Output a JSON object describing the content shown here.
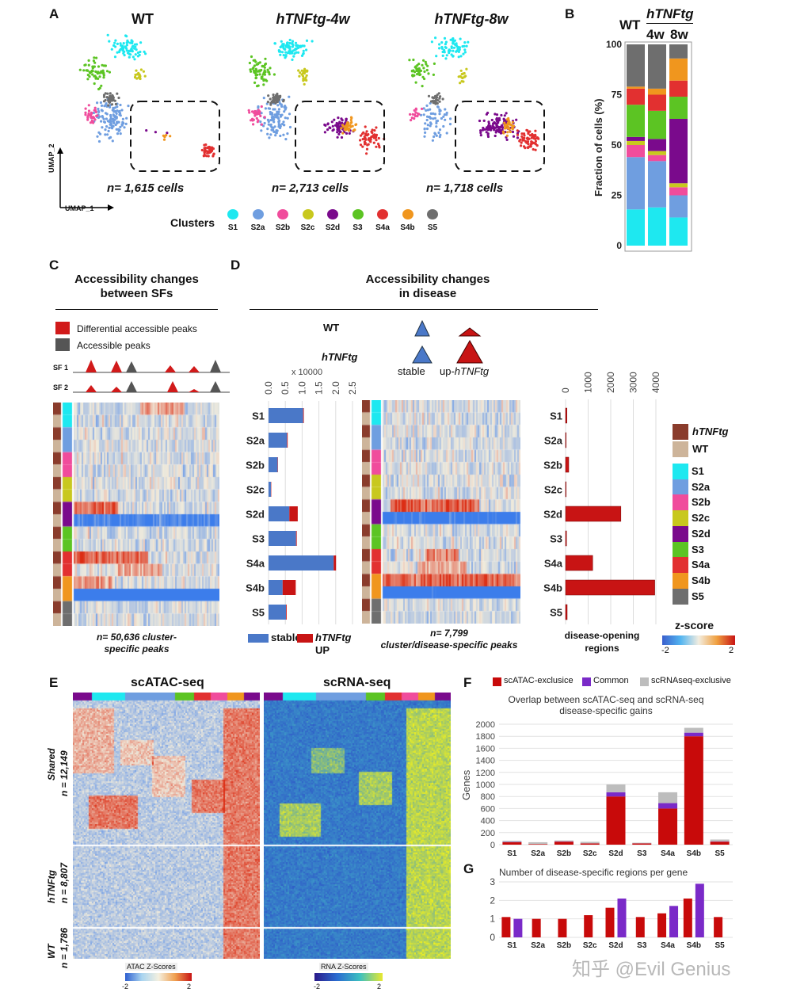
{
  "panels": {
    "A": "A",
    "B": "B",
    "C": "C",
    "D": "D",
    "E": "E",
    "F": "F",
    "G": "G"
  },
  "colors": {
    "S1": "#1ee8f0",
    "S2a": "#6f9ee0",
    "S2b": "#f04c9c",
    "S2c": "#c8c81e",
    "S2d": "#7a0a8c",
    "S3": "#5cc423",
    "S4a": "#e23030",
    "S4b": "#f0961e",
    "S5": "#6e6e6e",
    "hTNFtg": "#8a3c2c",
    "WT": "#cdb49a",
    "stable": "#4a78c8",
    "up": "#c81414",
    "atac_excl": "#c80a0a",
    "common": "#7a2ac8",
    "rna_excl": "#bdbdbd"
  },
  "panel_a": {
    "titles": [
      "WT",
      "hTNFtg-4w",
      "hTNFtg-8w"
    ],
    "counts": [
      "n= 1,615 cells",
      "n= 2,713 cells",
      "n= 1,718 cells"
    ],
    "axis_y": "UMAP_2",
    "axis_x": "UMAP_1",
    "clusters_label": "Clusters",
    "clusters": [
      "S1",
      "S2a",
      "S2b",
      "S2c",
      "S2d",
      "S3",
      "S4a",
      "S4b",
      "S5"
    ]
  },
  "panel_c": {
    "title_line1": "Accessibility changes",
    "title_line2": "between SFs",
    "legend_diff": "Differential accessible peaks",
    "legend_acc": "Accessible peaks",
    "sf1": "SF 1",
    "sf2": "SF 2",
    "caption_line1": "n=  50,636 cluster-",
    "caption_line2": "specific peaks"
  },
  "panel_d": {
    "title_line1": "Accessibility changes",
    "title_line2": "in disease",
    "wt": "WT",
    "htnf": "hTNFtg",
    "stable": "stable",
    "up_prefix": "up-",
    "up_italic": "hTNFtg",
    "legend_stable": "stable",
    "legend_up_italic": "hTNFtg",
    "legend_up_suffix": "UP",
    "heat_caption_line1": "n=  7,799",
    "heat_caption_line2": "cluster/disease-specific peaks",
    "regions_caption_line1": "disease-opening",
    "regions_caption_line2": "regions",
    "key_htnf": "hTNFtg",
    "key_wt": "WT",
    "zscore_title": "z-score",
    "zscore_min": "-2",
    "zscore_max": "2"
  },
  "panel_e": {
    "title_atac": "scATAC-seq",
    "title_rna": "scRNA-seq",
    "shared_label": "Shared",
    "shared_n": "n = 12,149",
    "htnf_label": "hTNFtg",
    "htnf_n": "n = 8,807",
    "wt_label": "WT",
    "wt_n": "n = 1,786",
    "atac_scale": "ATAC Z-Scores",
    "rna_scale": "RNA Z-Scores",
    "scale_min": "-2",
    "scale_max": "2"
  },
  "panel_f": {
    "legend_atac": "scATAC-exclusice",
    "legend_common": "Common",
    "legend_rna": "scRNAseq-exclusive",
    "title_line1": "Overlap between scATAC-seq and scRNA-seq",
    "title_line2": "disease-specific gains"
  },
  "panel_g": {
    "title": "Number of disease-specific regions per gene"
  },
  "watermark": "知乎 @Evil Genius",
  "chart_data": [
    {
      "id": "B",
      "type": "bar",
      "stacked": true,
      "categories": [
        "WT",
        "4w",
        "8w"
      ],
      "category_group": "hTNFtg",
      "ylabel": "Fraction of cells (%)",
      "ylim": [
        0,
        100
      ],
      "yticks": [
        0,
        25,
        50,
        75,
        100
      ],
      "series": [
        {
          "name": "S1",
          "values": [
            18,
            19,
            14
          ]
        },
        {
          "name": "S2a",
          "values": [
            26,
            23,
            11
          ]
        },
        {
          "name": "S2b",
          "values": [
            6,
            3,
            4
          ]
        },
        {
          "name": "S2c",
          "values": [
            2,
            2,
            2
          ]
        },
        {
          "name": "S2d",
          "values": [
            2,
            6,
            32
          ]
        },
        {
          "name": "S3",
          "values": [
            16,
            14,
            11
          ]
        },
        {
          "name": "S4a",
          "values": [
            8,
            8,
            8
          ]
        },
        {
          "name": "S4b",
          "values": [
            1,
            3,
            11
          ]
        },
        {
          "name": "S5",
          "values": [
            21,
            22,
            7
          ]
        }
      ]
    },
    {
      "id": "D-bars",
      "type": "bar",
      "orientation": "horizontal",
      "stacked": true,
      "categories": [
        "S1",
        "S2a",
        "S2b",
        "S2c",
        "S2d",
        "S3",
        "S4a",
        "S4b",
        "S5"
      ],
      "xlabel": "x 10000",
      "xlim": [
        0,
        2.5
      ],
      "xticks": [
        "0.0",
        "0.5",
        "1.0",
        "1.5",
        "2.0",
        "2.5"
      ],
      "series": [
        {
          "name": "stable",
          "values": [
            1.03,
            0.55,
            0.27,
            0.07,
            0.62,
            0.82,
            1.94,
            0.42,
            0.52
          ]
        },
        {
          "name": "hTNFtg UP",
          "values": [
            0.02,
            0.02,
            0.01,
            0.01,
            0.25,
            0.02,
            0.07,
            0.39,
            0.02
          ]
        }
      ]
    },
    {
      "id": "D-regions",
      "type": "bar",
      "orientation": "horizontal",
      "categories": [
        "S1",
        "S2a",
        "S2b",
        "S2c",
        "S2d",
        "S3",
        "S4a",
        "S4b",
        "S5"
      ],
      "xlim": [
        0,
        4000
      ],
      "xticks": [
        "0",
        "1000",
        "2000",
        "3000",
        "4000"
      ],
      "values": [
        60,
        25,
        140,
        25,
        2450,
        40,
        1200,
        3950,
        70
      ]
    },
    {
      "id": "F",
      "type": "bar",
      "stacked": true,
      "categories": [
        "S1",
        "S2a",
        "S2b",
        "S2c",
        "S2d",
        "S3",
        "S4a",
        "S4b",
        "S5"
      ],
      "ylabel": "Genes",
      "ylim": [
        0,
        2000
      ],
      "yticks": [
        0,
        200,
        400,
        600,
        800,
        1000,
        1200,
        1400,
        1600,
        1800,
        2000
      ],
      "series": [
        {
          "name": "scATAC-exclusice",
          "values": [
            40,
            10,
            50,
            20,
            800,
            20,
            600,
            1800,
            50
          ]
        },
        {
          "name": "Common",
          "values": [
            5,
            0,
            5,
            2,
            70,
            2,
            90,
            60,
            5
          ]
        },
        {
          "name": "scRNAseq-exclusive",
          "values": [
            20,
            30,
            15,
            25,
            130,
            10,
            180,
            80,
            30
          ]
        }
      ]
    },
    {
      "id": "G",
      "type": "bar",
      "categories": [
        "S1",
        "S2a",
        "S2b",
        "S2c",
        "S2d",
        "S3",
        "S4a",
        "S4b",
        "S5"
      ],
      "ylim": [
        0,
        3
      ],
      "yticks": [
        0,
        1,
        2,
        3
      ],
      "series": [
        {
          "name": "scATAC",
          "values": [
            1.1,
            1.0,
            1.0,
            1.2,
            1.6,
            1.1,
            1.3,
            2.1,
            1.1
          ]
        },
        {
          "name": "scRNA",
          "values": [
            1.0,
            null,
            null,
            null,
            2.1,
            null,
            1.7,
            2.9,
            null
          ]
        }
      ]
    }
  ]
}
